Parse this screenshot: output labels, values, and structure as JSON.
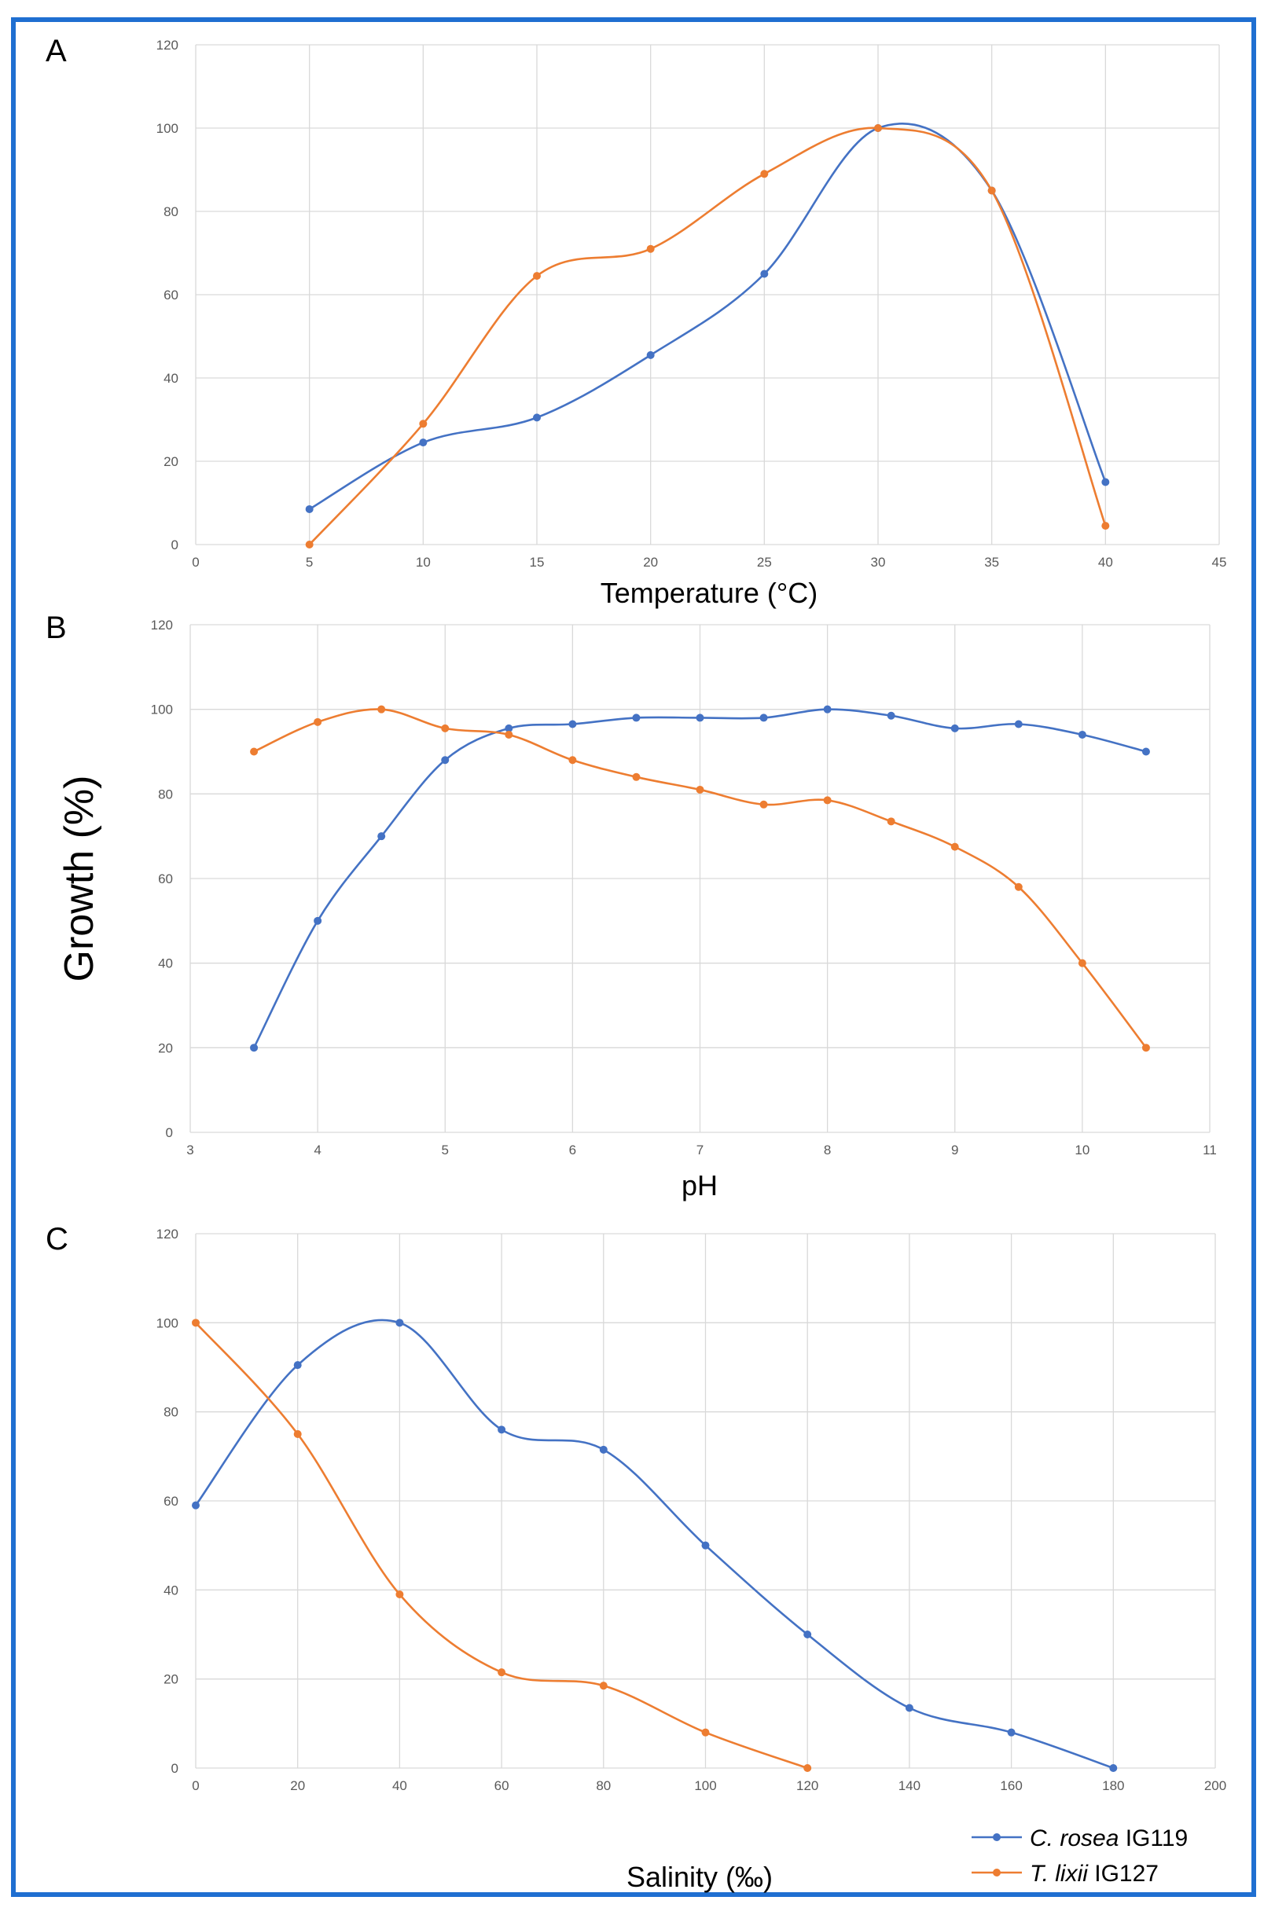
{
  "colors": {
    "series1": "#4472c4",
    "series2": "#ed7d31",
    "border": "#1f6fd1",
    "grid": "#d9d9d9"
  },
  "figure": {
    "ylabel": "Growth (%)"
  },
  "legend": [
    {
      "italic": "C. rosea",
      "suffix": " IG119",
      "series": 0
    },
    {
      "italic": "T. lixii",
      "suffix": " IG127",
      "series": 1
    }
  ],
  "chart_data": [
    {
      "type": "line",
      "panel": "A",
      "xlabel": "Temperature (°C)",
      "xlim": [
        0,
        45
      ],
      "xticks": [
        0,
        5,
        10,
        15,
        20,
        25,
        30,
        35,
        40,
        45
      ],
      "ylim": [
        0,
        120
      ],
      "yticks": [
        0,
        20,
        40,
        60,
        80,
        100,
        120
      ],
      "grid": true,
      "series": [
        {
          "name": "C. rosea IG119",
          "x": [
            5,
            10,
            15,
            20,
            25,
            30,
            35,
            40
          ],
          "y": [
            8.5,
            24.5,
            30.5,
            45.5,
            65,
            100,
            85,
            15
          ]
        },
        {
          "name": "T. lixii IG127",
          "x": [
            5,
            10,
            15,
            20,
            25,
            30,
            35,
            40
          ],
          "y": [
            0,
            29,
            64.5,
            71,
            89,
            100,
            85,
            4.5
          ]
        }
      ]
    },
    {
      "type": "line",
      "panel": "B",
      "xlabel": "pH",
      "xlim": [
        3,
        11
      ],
      "xticks": [
        3,
        4,
        5,
        6,
        7,
        8,
        9,
        10,
        11
      ],
      "ylim": [
        0,
        120
      ],
      "yticks": [
        0,
        20,
        40,
        60,
        80,
        100,
        120
      ],
      "grid": true,
      "series": [
        {
          "name": "C. rosea IG119",
          "x": [
            3.5,
            4,
            4.5,
            5,
            5.5,
            6,
            6.5,
            7,
            7.5,
            8,
            8.5,
            9,
            9.5,
            10,
            10.5
          ],
          "y": [
            20,
            50,
            70,
            88,
            95.5,
            96.5,
            98,
            98,
            98,
            100,
            98.5,
            95.5,
            96.5,
            94,
            90
          ]
        },
        {
          "name": "T. lixii IG127",
          "x": [
            3.5,
            4,
            4.5,
            5,
            5.5,
            6,
            6.5,
            7,
            7.5,
            8,
            8.5,
            9,
            9.5,
            10,
            10.5
          ],
          "y": [
            90,
            97,
            100,
            95.5,
            94,
            88,
            84,
            81,
            77.5,
            78.5,
            73.5,
            67.5,
            58,
            40,
            20
          ]
        }
      ]
    },
    {
      "type": "line",
      "panel": "C",
      "xlabel": "Salinity (‰)",
      "xlim": [
        0,
        200
      ],
      "xticks": [
        0,
        20,
        40,
        60,
        80,
        100,
        120,
        140,
        160,
        180,
        200
      ],
      "ylim": [
        0,
        120
      ],
      "yticks": [
        0,
        20,
        40,
        60,
        80,
        100,
        120
      ],
      "grid": true,
      "series": [
        {
          "name": "C. rosea IG119",
          "x": [
            0,
            20,
            40,
            60,
            80,
            100,
            120,
            140,
            160,
            180
          ],
          "y": [
            59,
            90.5,
            100,
            76,
            71.5,
            50,
            30,
            13.5,
            8,
            0
          ]
        },
        {
          "name": "T. lixii IG127",
          "x": [
            0,
            20,
            40,
            60,
            80,
            100,
            120
          ],
          "y": [
            100,
            75,
            39,
            21.5,
            18.5,
            8,
            0
          ]
        }
      ]
    }
  ]
}
